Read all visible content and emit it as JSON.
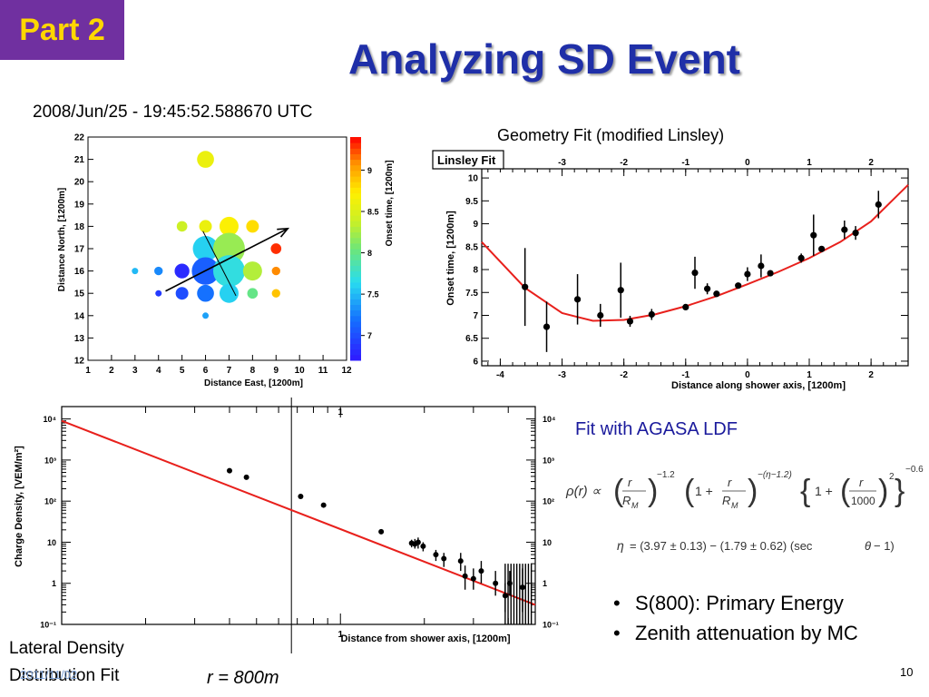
{
  "header": {
    "part_label": "Part 2",
    "title": "Analyzing SD Event"
  },
  "captions": {
    "timestamp": "2008/Jun/25 - 19:45:52.588670 UTC",
    "geometry_fit": "Geometry Fit (modified Linsley)",
    "agasa_fit": "Fit with AGASA LDF",
    "lateral_line1": "Lateral Density",
    "lateral_line2": "Distribution Fit",
    "r800": "r = 800m",
    "date_overlay": "2011/11/02",
    "page_number": "10"
  },
  "formulas": {
    "ldf": "ρ(r) ∝ (r/R_M)^−1.2 (1 + r/R_M)^−(η−1.2) {1 + (r/1000)²}^−0.6",
    "eta": "η = (3.97 ± 0.13) − (1.79 ± 0.62) (sec θ − 1)"
  },
  "bullets": [
    "S(800): Primary Energy",
    "Zenith attenuation by MC"
  ],
  "colors": {
    "badge_bg": "#7030a0",
    "badge_text": "#ffd700",
    "title": "#1f2fa8",
    "fit_line": "#e8201c",
    "agasa_caption": "#1a1a9c"
  },
  "chart_data": [
    {
      "type": "scatter",
      "xlabel": "Distance East, [1200m]",
      "ylabel": "Distance North, [1200m]",
      "colorbar_label": "Onset time, [1200m]",
      "xlim": [
        1,
        12
      ],
      "ylim": [
        12,
        22
      ],
      "x_ticks": [
        1,
        2,
        3,
        4,
        5,
        6,
        7,
        8,
        9,
        10,
        11,
        12
      ],
      "y_ticks": [
        12,
        13,
        14,
        15,
        16,
        17,
        18,
        19,
        20,
        21,
        22
      ],
      "colorbar_range": [
        6.7,
        9.4
      ],
      "colorbar_ticks": [
        7,
        7.5,
        8,
        8.5,
        9
      ],
      "points": [
        {
          "x": 6,
          "y": 21,
          "size": 0.8,
          "t": 8.6
        },
        {
          "x": 5,
          "y": 18,
          "size": 0.5,
          "t": 8.4
        },
        {
          "x": 6,
          "y": 18,
          "size": 0.6,
          "t": 8.6
        },
        {
          "x": 7,
          "y": 18,
          "size": 0.9,
          "t": 8.7
        },
        {
          "x": 8,
          "y": 18,
          "size": 0.6,
          "t": 8.8
        },
        {
          "x": 6,
          "y": 17,
          "size": 1.2,
          "t": 7.6
        },
        {
          "x": 7,
          "y": 17,
          "size": 1.5,
          "t": 8.2
        },
        {
          "x": 9,
          "y": 17,
          "size": 0.5,
          "t": 9.3
        },
        {
          "x": 3,
          "y": 16,
          "size": 0.3,
          "t": 7.5
        },
        {
          "x": 4,
          "y": 16,
          "size": 0.4,
          "t": 7.3
        },
        {
          "x": 5,
          "y": 16,
          "size": 0.7,
          "t": 6.8
        },
        {
          "x": 6,
          "y": 16,
          "size": 1.3,
          "t": 7.1
        },
        {
          "x": 7,
          "y": 16,
          "size": 1.5,
          "t": 7.7
        },
        {
          "x": 8,
          "y": 16,
          "size": 0.9,
          "t": 8.3
        },
        {
          "x": 9,
          "y": 16,
          "size": 0.4,
          "t": 9.1
        },
        {
          "x": 4,
          "y": 15,
          "size": 0.3,
          "t": 6.9
        },
        {
          "x": 5,
          "y": 15,
          "size": 0.6,
          "t": 7.0
        },
        {
          "x": 6,
          "y": 15,
          "size": 0.8,
          "t": 7.2
        },
        {
          "x": 7,
          "y": 15,
          "size": 0.9,
          "t": 7.6
        },
        {
          "x": 8,
          "y": 15,
          "size": 0.5,
          "t": 8.0
        },
        {
          "x": 9,
          "y": 15,
          "size": 0.4,
          "t": 8.9
        },
        {
          "x": 6,
          "y": 14,
          "size": 0.3,
          "t": 7.4
        }
      ],
      "shower_axis": {
        "x1": 4.3,
        "y1": 15.1,
        "x2": 9.5,
        "y2": 17.9
      }
    },
    {
      "type": "scatter",
      "title": "Linsley Fit",
      "xlabel": "Distance along shower axis, [1200m]",
      "ylabel": "Onset time, [1200m]",
      "xlim": [
        -4.3,
        2.6
      ],
      "ylim": [
        5.9,
        10.2
      ],
      "x_ticks": [
        -4,
        -3,
        -2,
        -1,
        0,
        1,
        2
      ],
      "top_ticks": [
        -3,
        -2,
        -1,
        0,
        1,
        2
      ],
      "y_ticks": [
        6,
        6.5,
        7,
        7.5,
        8,
        8.5,
        9,
        9.5,
        10
      ],
      "points": [
        {
          "x": -3.6,
          "y": 7.62,
          "err": 0.85
        },
        {
          "x": -3.25,
          "y": 6.75,
          "err": 0.55
        },
        {
          "x": -2.75,
          "y": 7.35,
          "err": 0.55
        },
        {
          "x": -2.38,
          "y": 7.0,
          "err": 0.25
        },
        {
          "x": -2.05,
          "y": 7.55,
          "err": 0.6
        },
        {
          "x": -1.9,
          "y": 6.87,
          "err": 0.12
        },
        {
          "x": -1.55,
          "y": 7.02,
          "err": 0.12
        },
        {
          "x": -1.0,
          "y": 7.18,
          "err": 0.05
        },
        {
          "x": -0.85,
          "y": 7.93,
          "err": 0.35
        },
        {
          "x": -0.65,
          "y": 7.58,
          "err": 0.12
        },
        {
          "x": -0.5,
          "y": 7.47,
          "err": 0.05
        },
        {
          "x": -0.15,
          "y": 7.65,
          "err": 0.05
        },
        {
          "x": 0.0,
          "y": 7.9,
          "err": 0.15
        },
        {
          "x": 0.22,
          "y": 8.08,
          "err": 0.25
        },
        {
          "x": 0.37,
          "y": 7.92,
          "err": 0.05
        },
        {
          "x": 0.87,
          "y": 8.25,
          "err": 0.1
        },
        {
          "x": 1.07,
          "y": 8.75,
          "err": 0.45
        },
        {
          "x": 1.2,
          "y": 8.45,
          "err": 0.05
        },
        {
          "x": 1.57,
          "y": 8.87,
          "err": 0.2
        },
        {
          "x": 1.75,
          "y": 8.8,
          "err": 0.15
        },
        {
          "x": 2.12,
          "y": 9.42,
          "err": 0.3
        }
      ],
      "fit_curve": {
        "x": [
          -4.3,
          -3.6,
          -3.0,
          -2.5,
          -2.0,
          -1.5,
          -1.0,
          -0.5,
          0,
          0.5,
          1,
          1.5,
          2,
          2.6
        ],
        "y": [
          8.6,
          7.6,
          7.05,
          6.88,
          6.9,
          7.02,
          7.2,
          7.42,
          7.68,
          7.95,
          8.25,
          8.6,
          9.05,
          9.85
        ]
      }
    },
    {
      "type": "scatter",
      "xlabel": "Distance from shower axis, [1200m]",
      "ylabel": "Charge Density, [VEM/m²]",
      "x_scale": "log",
      "y_scale": "log",
      "xlim": [
        0.1,
        5.0
      ],
      "ylim": [
        0.1,
        20000
      ],
      "y_ticks": [
        "10⁻¹",
        "1",
        "10",
        "10²",
        "10³",
        "10⁴"
      ],
      "x_tick_labels": [
        "1"
      ],
      "points": [
        {
          "x": 0.4,
          "y": 550,
          "err_lo": 20,
          "err_hi": 20
        },
        {
          "x": 0.46,
          "y": 380,
          "err_lo": 15,
          "err_hi": 15
        },
        {
          "x": 0.72,
          "y": 130,
          "err_lo": 8,
          "err_hi": 8
        },
        {
          "x": 0.87,
          "y": 80,
          "err_lo": 5,
          "err_hi": 5
        },
        {
          "x": 1.4,
          "y": 18,
          "err_lo": 2,
          "err_hi": 2
        },
        {
          "x": 1.8,
          "y": 9.5,
          "err_lo": 2,
          "err_hi": 2
        },
        {
          "x": 1.85,
          "y": 9,
          "err_lo": 2,
          "err_hi": 3
        },
        {
          "x": 1.9,
          "y": 10,
          "err_lo": 3,
          "err_hi": 3
        },
        {
          "x": 1.98,
          "y": 8,
          "err_lo": 2,
          "err_hi": 2
        },
        {
          "x": 2.2,
          "y": 5,
          "err_lo": 1.5,
          "err_hi": 1.5
        },
        {
          "x": 2.35,
          "y": 4,
          "err_lo": 1.5,
          "err_hi": 1.5
        },
        {
          "x": 2.7,
          "y": 3.5,
          "err_lo": 1.5,
          "err_hi": 2
        },
        {
          "x": 2.8,
          "y": 1.5,
          "err_lo": 0.8,
          "err_hi": 1.2
        },
        {
          "x": 3.0,
          "y": 1.3,
          "err_lo": 0.6,
          "err_hi": 1
        },
        {
          "x": 3.2,
          "y": 2,
          "err_lo": 1,
          "err_hi": 1.5
        },
        {
          "x": 3.6,
          "y": 1.0,
          "err_lo": 0.5,
          "err_hi": 1
        },
        {
          "x": 3.9,
          "y": 0.5,
          "err_lo": 0.3,
          "err_hi": 0.5
        },
        {
          "x": 4.05,
          "y": 1.0,
          "err_lo": 0.5,
          "err_hi": 1
        },
        {
          "x": 4.5,
          "y": 0.8,
          "err_lo": 0.6,
          "err_hi": 1.5
        }
      ],
      "fit_line": {
        "x": [
          0.1,
          5.0
        ],
        "y": [
          9000,
          0.3
        ]
      },
      "r800_marker_x": 0.667
    }
  ]
}
